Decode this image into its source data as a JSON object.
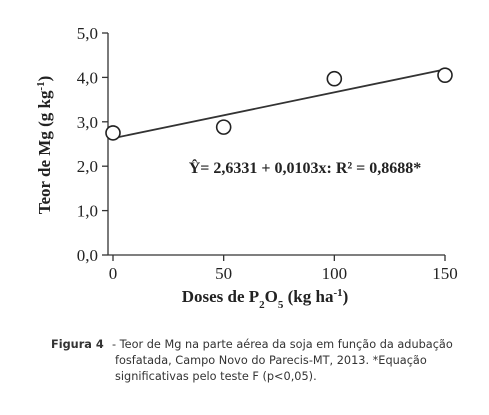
{
  "chart_data": {
    "type": "scatter",
    "series": [
      {
        "color": "#222222",
        "x": [
          0,
          50,
          100,
          150
        ],
        "values": [
          2.75,
          2.88,
          3.97,
          4.05
        ]
      }
    ],
    "fit_line": {
      "color": "#333333",
      "x": [
        0,
        150
      ],
      "values": [
        2.63,
        4.18
      ]
    },
    "equation": "Ŷ= 2,6331 + 0,0103x: R² = 0,8688*",
    "ylabel": [
      {
        "text": "Teor de Mg (g kg"
      },
      {
        "text": "-1",
        "sup": true
      },
      {
        "text": ")"
      }
    ],
    "xlabel": [
      {
        "text": "Doses de P"
      },
      {
        "text": "2",
        "sub": true
      },
      {
        "text": "O"
      },
      {
        "text": "5",
        "sub": true
      },
      {
        "text": " (kg ha"
      },
      {
        "text": "-1",
        "sup": true
      },
      {
        "text": ")"
      }
    ],
    "xlim": [
      0,
      150
    ],
    "xticks": [
      0,
      50,
      100,
      150
    ],
    "ylim": [
      0,
      5
    ],
    "yticks": [
      {
        "value": 0,
        "label": "0,0"
      },
      {
        "value": 1,
        "label": "1,0"
      },
      {
        "value": 2,
        "label": "2,0"
      },
      {
        "value": 3,
        "label": "3,0"
      },
      {
        "value": 4,
        "label": "4,0"
      },
      {
        "value": 5,
        "label": "5,0"
      }
    ]
  },
  "caption": {
    "label": "Figura 4",
    "text": "- Teor de Mg na parte aérea da soja em função da adubação fosfatada, Campo Novo do Parecis-MT, 2013. *Equação significativas pelo teste F (p<0,05)."
  }
}
